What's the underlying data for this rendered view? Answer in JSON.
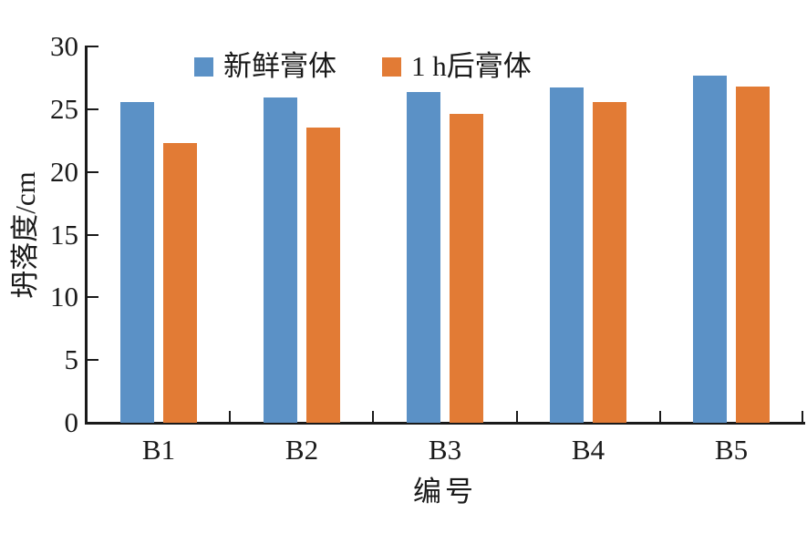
{
  "chart_data": {
    "type": "bar",
    "title": "",
    "categories": [
      "B1",
      "B2",
      "B3",
      "B4",
      "B5"
    ],
    "series": [
      {
        "name": "新鲜膏体",
        "color": "#5B91C6",
        "values": [
          25.6,
          25.9,
          26.4,
          26.7,
          27.7
        ]
      },
      {
        "name": "1 h后膏体",
        "color": "#E27B35",
        "values": [
          22.3,
          23.5,
          24.6,
          25.6,
          26.8
        ]
      }
    ],
    "xlabel": "编号",
    "ylabel": "坍落度/cm",
    "ylim": [
      0,
      30
    ],
    "yticks": [
      0,
      5,
      10,
      15,
      20,
      25,
      30
    ],
    "grid": false,
    "legend_position": "top-inside"
  },
  "colors": {
    "axis": "#1a1a1a",
    "background": "#ffffff",
    "series_blue": "#5B91C6",
    "series_orange": "#E27B35"
  }
}
